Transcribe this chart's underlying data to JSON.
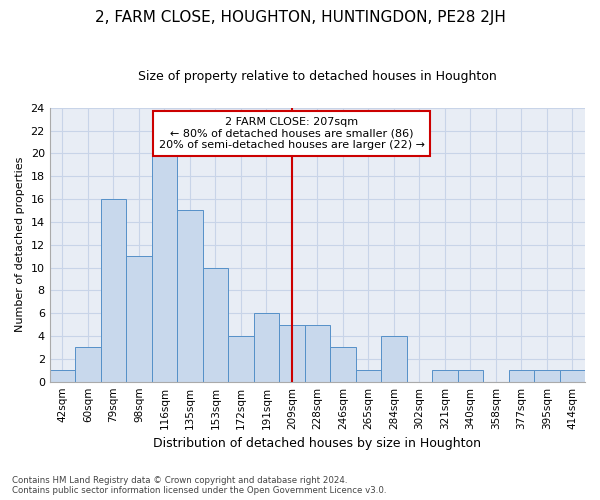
{
  "title": "2, FARM CLOSE, HOUGHTON, HUNTINGDON, PE28 2JH",
  "subtitle": "Size of property relative to detached houses in Houghton",
  "xlabel": "Distribution of detached houses by size in Houghton",
  "ylabel": "Number of detached properties",
  "footnote1": "Contains HM Land Registry data © Crown copyright and database right 2024.",
  "footnote2": "Contains public sector information licensed under the Open Government Licence v3.0.",
  "categories": [
    "42sqm",
    "60sqm",
    "79sqm",
    "98sqm",
    "116sqm",
    "135sqm",
    "153sqm",
    "172sqm",
    "191sqm",
    "209sqm",
    "228sqm",
    "246sqm",
    "265sqm",
    "284sqm",
    "302sqm",
    "321sqm",
    "340sqm",
    "358sqm",
    "377sqm",
    "395sqm",
    "414sqm"
  ],
  "values": [
    1,
    3,
    16,
    11,
    20,
    15,
    10,
    4,
    6,
    5,
    5,
    3,
    1,
    4,
    0,
    1,
    1,
    0,
    1,
    1,
    1
  ],
  "bar_color": "#c8d8ec",
  "bar_edge_color": "#5590c8",
  "grid_color": "#c8d4e8",
  "bg_color": "#e8edf5",
  "marker_color": "#cc0000",
  "annotation_line1": "2 FARM CLOSE: 207sqm",
  "annotation_line2": "← 80% of detached houses are smaller (86)",
  "annotation_line3": "20% of semi-detached houses are larger (22) →",
  "annotation_box_color": "#ffffff",
  "annotation_box_edge": "#cc0000",
  "marker_bar_index": 9,
  "ylim": [
    0,
    24
  ],
  "yticks": [
    0,
    2,
    4,
    6,
    8,
    10,
    12,
    14,
    16,
    18,
    20,
    22,
    24
  ],
  "title_fontsize": 11,
  "subtitle_fontsize": 9,
  "ylabel_fontsize": 8,
  "xlabel_fontsize": 9
}
